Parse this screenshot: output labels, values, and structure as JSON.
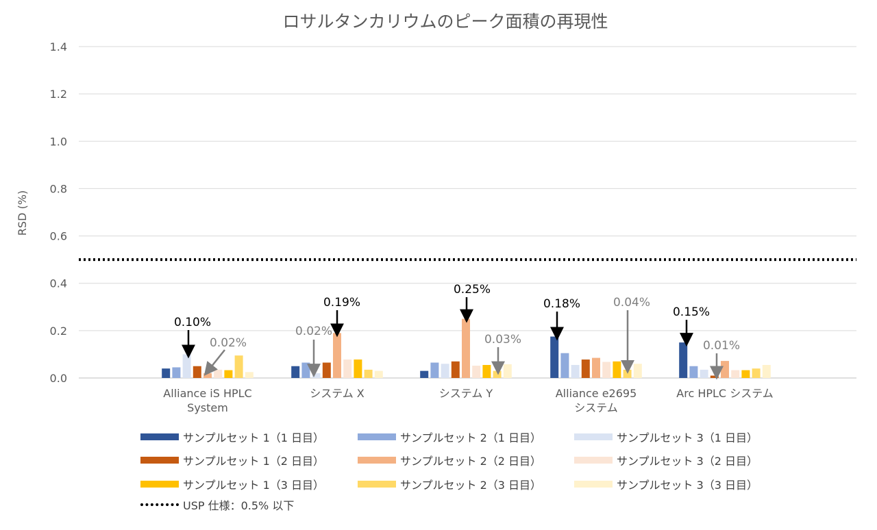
{
  "chart_data": {
    "type": "bar",
    "title": "ロサルタンカリウムのピーク面積の再現性",
    "xlabel": "",
    "ylabel": "RSD (%)",
    "ylim": [
      0,
      1.4
    ],
    "yticks": [
      "0.0",
      "0.2",
      "0.4",
      "0.6",
      "0.8",
      "1.0",
      "1.2",
      "1.4"
    ],
    "ytick_values": [
      0,
      0.2,
      0.4,
      0.6,
      0.8,
      1.0,
      1.2,
      1.4
    ],
    "grid": true,
    "categories": [
      [
        "Alliance iS HPLC",
        "System"
      ],
      [
        "システム X"
      ],
      [
        "システム Y"
      ],
      [
        "Alliance e2695",
        "システム"
      ],
      [
        "Arc HPLC システム"
      ]
    ],
    "series": [
      {
        "name": "サンプルセット 1（1 日目）",
        "color": "#2F5597",
        "values": [
          0.04,
          0.05,
          0.03,
          0.175,
          0.15
        ]
      },
      {
        "name": "サンプルセット 2（1 日目）",
        "color": "#8FAADC",
        "values": [
          0.045,
          0.065,
          0.065,
          0.105,
          0.05
        ]
      },
      {
        "name": "サンプルセット 3（1 日目）",
        "color": "#DAE3F3",
        "values": [
          0.1,
          0.02,
          0.06,
          0.055,
          0.035
        ]
      },
      {
        "name": "サンプルセット 1（2 日目）",
        "color": "#C55A11",
        "values": [
          0.05,
          0.065,
          0.07,
          0.078,
          0.01
        ]
      },
      {
        "name": "サンプルセット 2（2 日目）",
        "color": "#F4B183",
        "values": [
          0.02,
          0.19,
          0.25,
          0.085,
          0.072
        ]
      },
      {
        "name": "サンプルセット 3（2 日目）",
        "color": "#FBE5D6",
        "values": [
          0.035,
          0.078,
          0.052,
          0.068,
          0.033
        ]
      },
      {
        "name": "サンプルセット 1（3 日目）",
        "color": "#FFC000",
        "values": [
          0.033,
          0.078,
          0.055,
          0.07,
          0.033
        ]
      },
      {
        "name": "サンプルセット 2（3 日目）",
        "color": "#FFD966",
        "values": [
          0.095,
          0.035,
          0.03,
          0.035,
          0.04
        ]
      },
      {
        "name": "サンプルセット 3（3 日目）",
        "color": "#FFF2CC",
        "values": [
          0.025,
          0.03,
          0.058,
          0.06,
          0.055
        ]
      }
    ],
    "reference_line": {
      "name": "USP 仕様：0.5% 以下",
      "value": 0.5,
      "color": "#000000"
    },
    "annotations": [
      {
        "text": "0.10%",
        "category": 0,
        "series": 2,
        "style": "dark"
      },
      {
        "text": "0.02%",
        "category": 0,
        "series": 4,
        "style": "gray"
      },
      {
        "text": "0.02%",
        "category": 1,
        "series": 2,
        "style": "gray"
      },
      {
        "text": "0.19%",
        "category": 1,
        "series": 4,
        "style": "dark"
      },
      {
        "text": "0.25%",
        "category": 2,
        "series": 4,
        "style": "dark"
      },
      {
        "text": "0.03%",
        "category": 2,
        "series": 7,
        "style": "gray"
      },
      {
        "text": "0.18%",
        "category": 3,
        "series": 0,
        "style": "dark"
      },
      {
        "text": "0.04%",
        "category": 3,
        "series": 7,
        "style": "gray"
      },
      {
        "text": "0.15%",
        "category": 4,
        "series": 0,
        "style": "dark"
      },
      {
        "text": "0.01%",
        "category": 4,
        "series": 3,
        "style": "gray"
      }
    ],
    "legend_position": "bottom"
  }
}
